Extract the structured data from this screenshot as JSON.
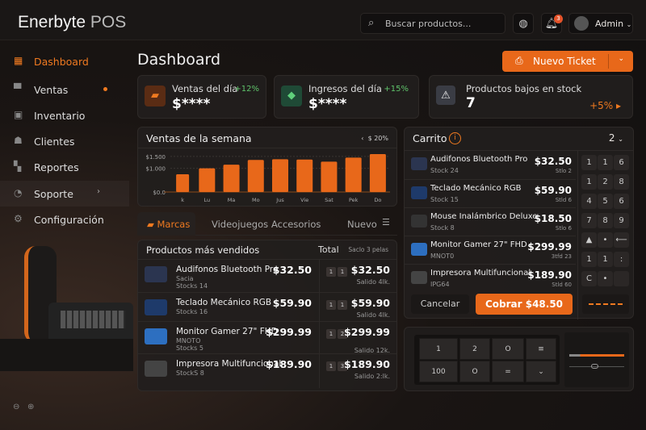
{
  "app": {
    "brand": "Enerbyte",
    "brand_suffix": "POS"
  },
  "header": {
    "search_placeholder": "Buscar productos...",
    "notifications": "3",
    "user": "Admin"
  },
  "sidebar": {
    "items": [
      {
        "label": "Dashboard",
        "icon": "dashboard-icon",
        "active": true
      },
      {
        "label": "Ventas",
        "icon": "cart-icon"
      },
      {
        "label": "Inventario",
        "icon": "inventory-icon"
      },
      {
        "label": "Clientes",
        "icon": "user-icon"
      },
      {
        "label": "Reportes",
        "icon": "grid-icon"
      },
      {
        "label": "Soporte",
        "icon": "support-icon"
      },
      {
        "label": "Configuración",
        "icon": "gear-icon"
      }
    ]
  },
  "page": {
    "title": "Dashboard",
    "new_ticket": "Nuevo Ticket"
  },
  "stats": [
    {
      "label": "Ventas del día",
      "value": "$****",
      "change": "+12%"
    },
    {
      "label": "Ingresos del día",
      "value": "$****",
      "change": "+15%"
    },
    {
      "label": "Productos bajos en stock",
      "value": "7",
      "change": "+5%"
    }
  ],
  "chart_data": {
    "type": "bar",
    "title": "Ventas de la semana",
    "badge": "$ 20%",
    "categories": [
      "k",
      "Lu",
      "Ma",
      "Mo",
      "Jus",
      "Vie",
      "Sat",
      "Pek",
      "Do"
    ],
    "values": [
      750,
      1000,
      1150,
      1350,
      1380,
      1370,
      1280,
      1450,
      1600
    ],
    "yticks": [
      "$0.0",
      "$1.000",
      "$1.500"
    ],
    "ytick_values": [
      0,
      1000,
      1500
    ],
    "ylim": [
      0,
      1700
    ],
    "color": "#e8681a",
    "grid": true
  },
  "tabs": [
    {
      "label": "Marcas",
      "active": true
    },
    {
      "label": "Videojuegos"
    },
    {
      "label": "Accesorios"
    },
    {
      "label": "Nuevo"
    }
  ],
  "bestsellers": {
    "title": "Productos más vendidos",
    "total_header": "Total",
    "extra_header": "Saclo 3 pelas",
    "rows": [
      {
        "name": "Audifonos Bluetooth Pro",
        "sub1": "Sacia",
        "sub2": "Stocks 14",
        "price": "$32.50",
        "q1": "1",
        "q2": "1",
        "total": "$32.50",
        "note": "Salido 4lk."
      },
      {
        "name": "Teclado Mecánico RGB",
        "sub1": "",
        "sub2": "Stocks 16",
        "price": "$59.90",
        "q1": "1",
        "q2": "1",
        "total": "$59.90",
        "note": "Salido 4lk."
      },
      {
        "name": "Monitor Gamer 27\" FHD",
        "sub1": "MNOTO",
        "sub2": "Stocks 5",
        "price": "$299.99",
        "q1": "1",
        "q2": "2",
        "total": "$299.99",
        "note": "Salido 12k."
      },
      {
        "name": "Impresora Multifuncional",
        "sub1": "",
        "sub2": "StockS 8",
        "price": "$189.90",
        "q1": "1",
        "q2": "3",
        "total": "$189.90",
        "note": "Salido 2:lk."
      }
    ]
  },
  "cart": {
    "title": "Carrito",
    "count": "2",
    "items": [
      {
        "name": "Audifonos Bluetooth Pro",
        "sub": "Stock 24",
        "price": "$32.50",
        "note": "Stlo 2"
      },
      {
        "name": "Teclado Mecánico RGB",
        "sub": "Stock 15",
        "price": "$59.90",
        "note": "Stld 6"
      },
      {
        "name": "Mouse Inalámbrico Deluxe",
        "sub": "Stock 8",
        "price": "$18.50",
        "note": "Stlo 6"
      },
      {
        "name": "Monitor Gamer 27\" FHD",
        "sub": "MNOT0",
        "price": "$299.99",
        "note": "3tfd 23"
      },
      {
        "name": "Impresora Multifuncional",
        "sub": "IPG64",
        "price": "$189.90",
        "note": "Stld 60"
      }
    ],
    "keypad": [
      "1",
      "1",
      "6",
      "1",
      "2",
      "8",
      "4",
      "5",
      "6",
      "7",
      "8",
      "9",
      "▲",
      "•",
      "⟵",
      "1",
      "1",
      ":",
      "C",
      "•",
      ""
    ],
    "cancel": "Cancelar",
    "charge": "Cobrar $48.50"
  },
  "register": {
    "keys": [
      "1",
      "2",
      "O",
      "≡",
      "100",
      "O",
      "=",
      "⌄"
    ]
  }
}
